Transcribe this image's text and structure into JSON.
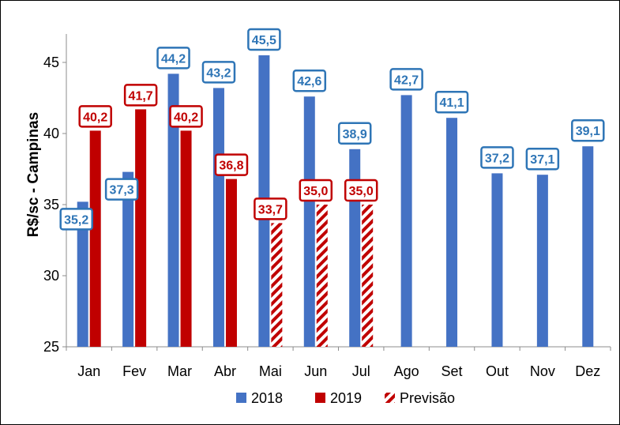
{
  "chart_data": {
    "type": "bar",
    "title": "",
    "xlabel": "",
    "ylabel": "R$/sc - Campinas",
    "ylim": [
      25,
      47
    ],
    "yticks": [
      25,
      30,
      35,
      40,
      45
    ],
    "grid": false,
    "legend_position": "bottom",
    "categories": [
      "Jan",
      "Fev",
      "Mar",
      "Abr",
      "Mai",
      "Jun",
      "Jul",
      "Ago",
      "Set",
      "Out",
      "Nov",
      "Dez"
    ],
    "series": [
      {
        "name": "2018",
        "color": "#4472C4",
        "values": [
          35.2,
          37.3,
          44.2,
          43.2,
          45.5,
          42.6,
          38.9,
          42.7,
          41.1,
          37.2,
          37.1,
          39.1
        ],
        "labels": [
          "35,2",
          "37,3",
          "44,2",
          "43,2",
          "45,5",
          "42,6",
          "38,9",
          "42,7",
          "41,1",
          "37,2",
          "37,1",
          "39,1"
        ],
        "label_color": "#2E75B6"
      },
      {
        "name": "2019",
        "color": "#C00000",
        "values": [
          40.2,
          41.7,
          40.2,
          36.8,
          null,
          null,
          null,
          null,
          null,
          null,
          null,
          null
        ],
        "labels": [
          "40,2",
          "41,7",
          "40,2",
          "36,8",
          "",
          "",
          "",
          "",
          "",
          "",
          "",
          ""
        ],
        "label_color": "#C00000"
      },
      {
        "name": "Previsão",
        "color": "#C00000",
        "pattern": "diagonal-stripes",
        "values": [
          null,
          null,
          null,
          null,
          33.7,
          35.0,
          35.0,
          null,
          null,
          null,
          null,
          null
        ],
        "labels": [
          "",
          "",
          "",
          "",
          "33,7",
          "35,0",
          "35,0",
          "",
          "",
          "",
          "",
          ""
        ],
        "label_color": "#C00000"
      }
    ],
    "ytick_labels": [
      "25",
      "30",
      "35",
      "40",
      "45"
    ]
  }
}
